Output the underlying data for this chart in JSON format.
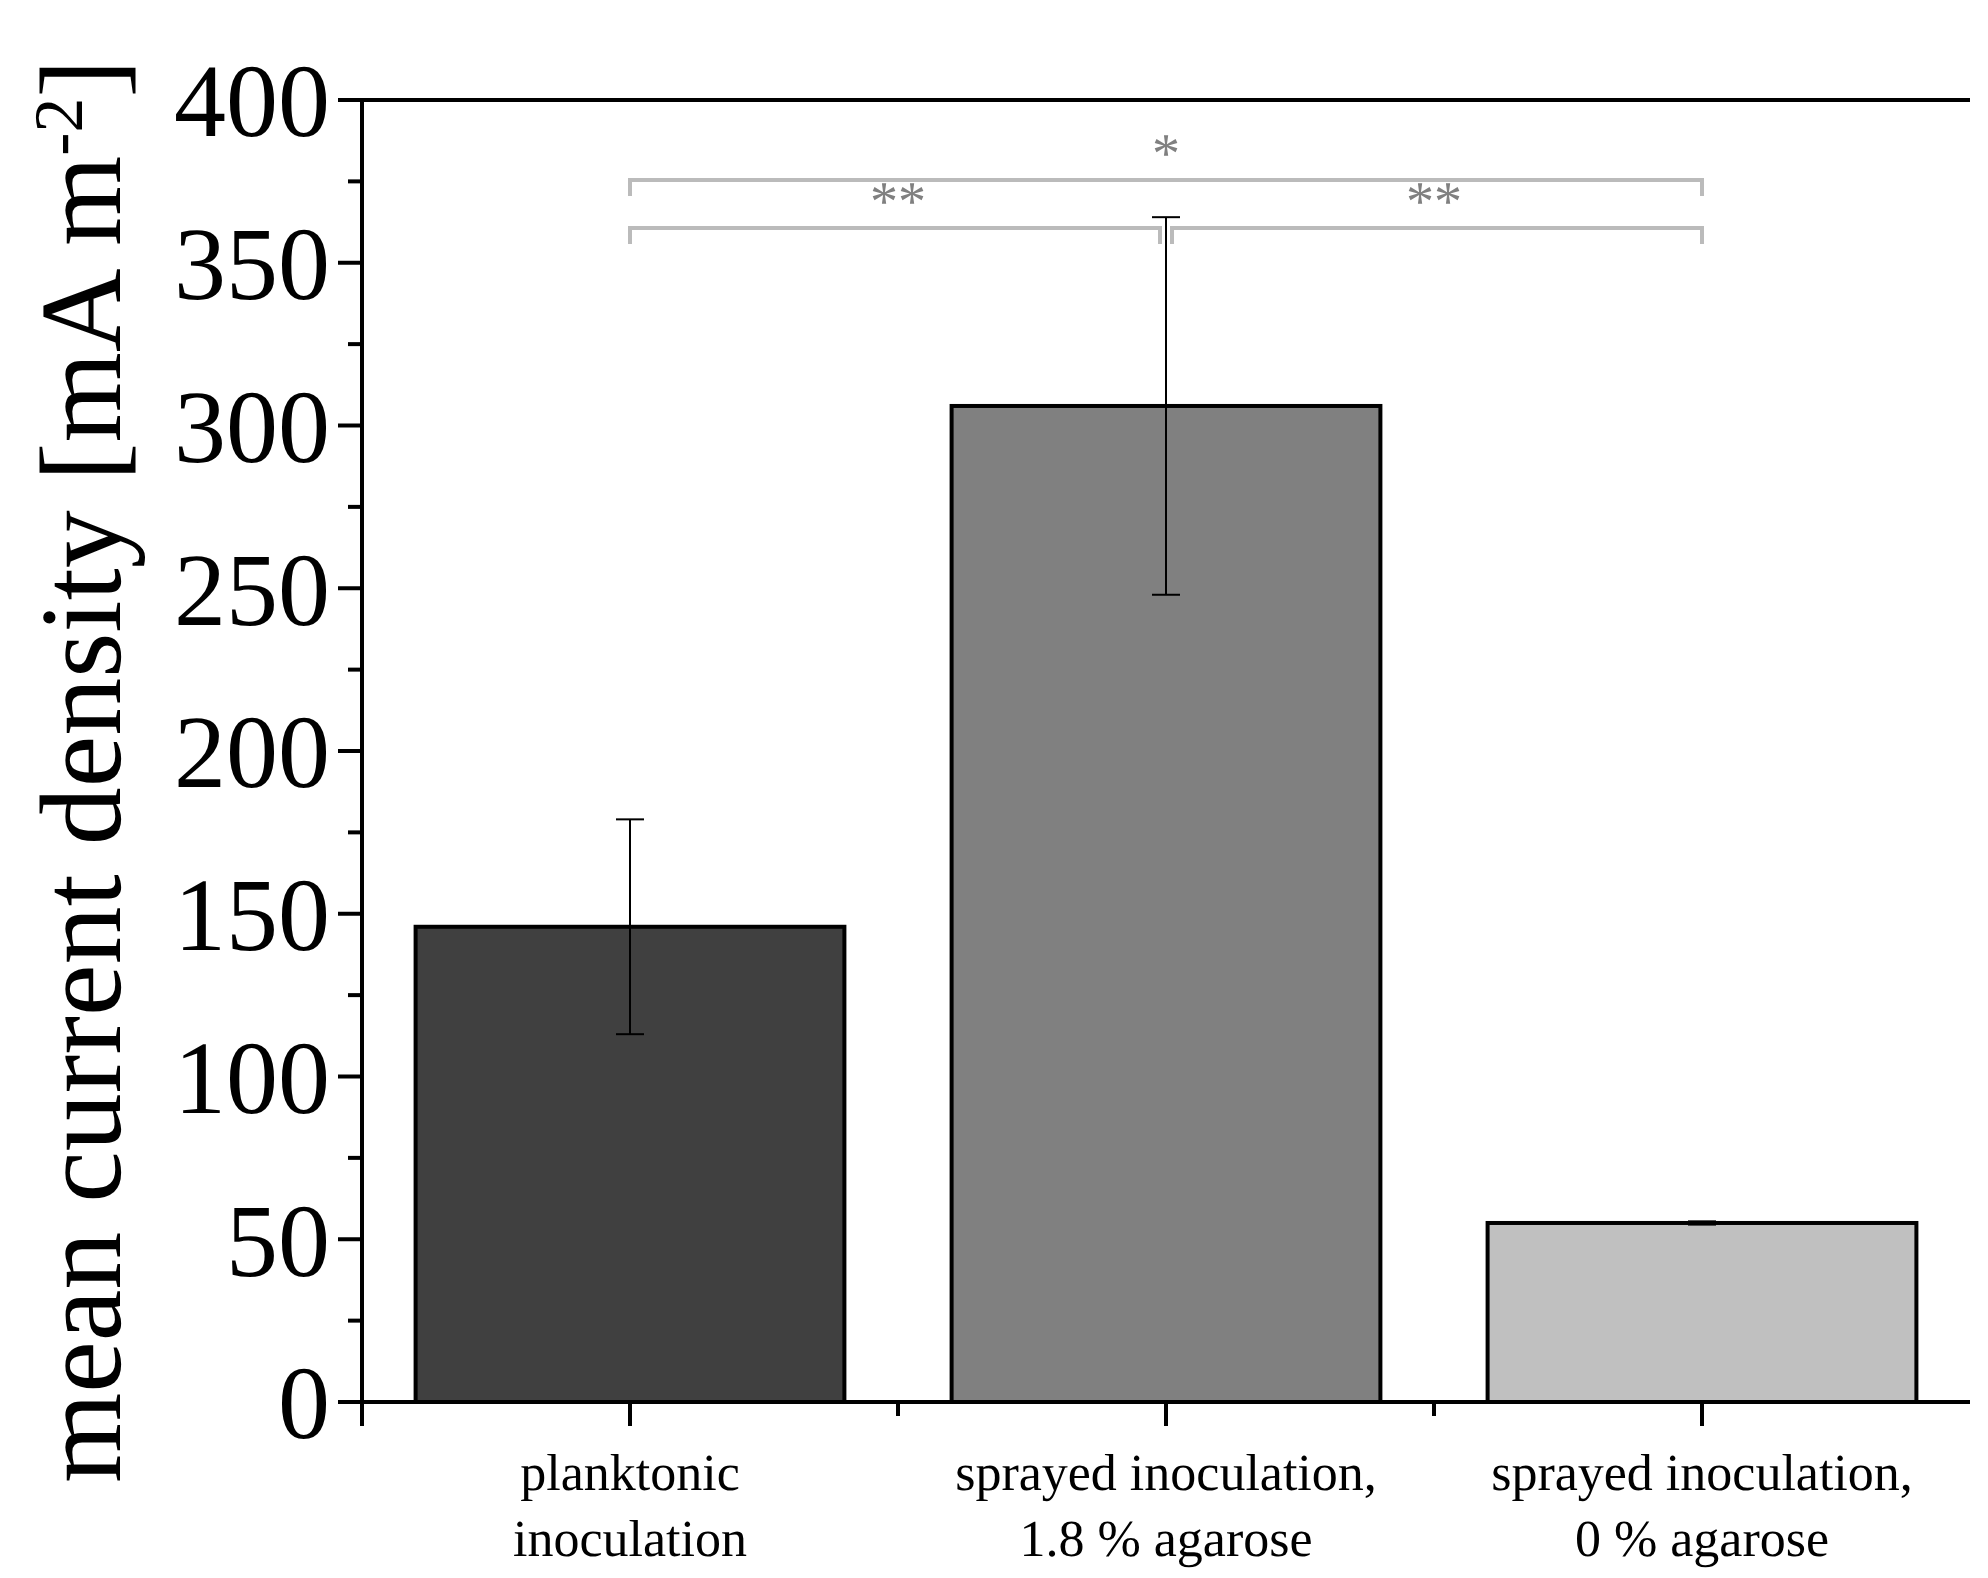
{
  "chart_data": {
    "type": "bar",
    "ylabel": "mean current density [mA m$^{-2}$]",
    "categories": [
      "planktonic\ninoculation",
      "sprayed inoculation,\n1.8 % agarose",
      "sprayed inoculation,\n0 % agarose"
    ],
    "values": [
      146,
      306,
      55
    ],
    "colors": [
      "#404040",
      "#808080",
      "#c0c0c0"
    ],
    "errors": [
      33,
      58,
      0.5
    ],
    "ylim": [
      0,
      400
    ],
    "yticks": [
      0,
      50,
      100,
      150,
      200,
      250,
      300,
      350,
      400
    ],
    "annotations": [
      "*",
      "**",
      "**"
    ],
    "grid": false
  }
}
